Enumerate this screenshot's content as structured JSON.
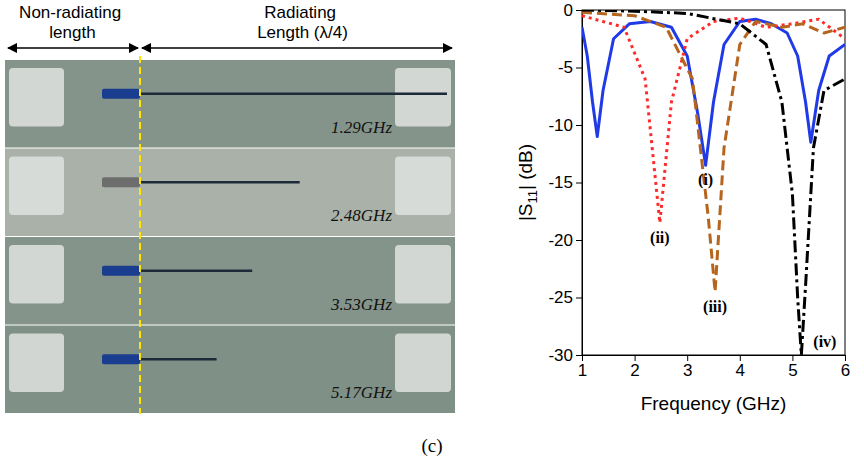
{
  "photo": {
    "header_left": "Non-radiating length",
    "header_right": "Radiating Length (λ/4)",
    "rows": [
      {
        "value": 1.29,
        "label": "1.29GHz"
      },
      {
        "value": 2.48,
        "label": "2.48GHz"
      },
      {
        "value": 3.53,
        "label": "3.53GHz"
      },
      {
        "value": 5.17,
        "label": "5.17GHz"
      }
    ]
  },
  "caption": "(c)",
  "chart_data": {
    "type": "line",
    "x_label": "Frequency (GHz)",
    "y_label": "|S11| (dB)",
    "xlim": [
      1,
      6
    ],
    "ylim": [
      -30,
      0
    ],
    "xticks": [
      1,
      2,
      3,
      4,
      5,
      6
    ],
    "yticks": [
      -30,
      -25,
      -20,
      -15,
      -10,
      -5,
      0
    ],
    "legend": false,
    "series": [
      {
        "name": "(i)",
        "color": "#1f3ae6",
        "line_style": "solid",
        "x": [
          1.0,
          1.1,
          1.2,
          1.29,
          1.4,
          1.6,
          1.9,
          2.3,
          2.7,
          3.0,
          3.2,
          3.35,
          3.5,
          3.7,
          4.0,
          4.3,
          4.6,
          4.9,
          5.1,
          5.25,
          5.35,
          5.5,
          5.7,
          6.0
        ],
        "values": [
          -1.5,
          -4,
          -8,
          -11,
          -7,
          -2.5,
          -1.2,
          -1,
          -1.5,
          -4,
          -9,
          -13.5,
          -8,
          -3,
          -1,
          -0.8,
          -1.2,
          -2,
          -4,
          -8,
          -11.5,
          -7,
          -4,
          -3
        ]
      },
      {
        "name": "(ii)",
        "color": "#ff2a2a",
        "line_style": "dotted",
        "x": [
          1.0,
          1.8,
          2.2,
          2.48,
          2.7,
          3.0,
          3.5,
          4.0,
          4.5,
          5.0,
          5.5,
          6.0
        ],
        "values": [
          -0.5,
          -1.5,
          -6,
          -18.5,
          -8,
          -2.5,
          -1,
          -0.7,
          -1.5,
          -1.2,
          -0.8,
          -2.5
        ]
      },
      {
        "name": "(iii)",
        "color": "#b5651d",
        "line_style": "dashed",
        "x": [
          1.0,
          2.0,
          2.6,
          3.1,
          3.4,
          3.53,
          3.7,
          4.0,
          4.3,
          4.8,
          5.2,
          5.6,
          6.0
        ],
        "values": [
          -0.2,
          -0.5,
          -1.5,
          -6,
          -18,
          -24.5,
          -12,
          -3,
          -1,
          -1.5,
          -1.2,
          -2,
          -1.5
        ]
      },
      {
        "name": "(iv)",
        "color": "#000000",
        "line_style": "dash-dot",
        "x": [
          1.0,
          2.0,
          3.0,
          4.0,
          4.5,
          4.8,
          5.0,
          5.1,
          5.17,
          5.25,
          5.4,
          5.6,
          6.0
        ],
        "values": [
          0,
          -0.1,
          -0.3,
          -1.2,
          -3,
          -8,
          -16,
          -25,
          -30,
          -24,
          -12,
          -7,
          -6
        ]
      }
    ]
  }
}
